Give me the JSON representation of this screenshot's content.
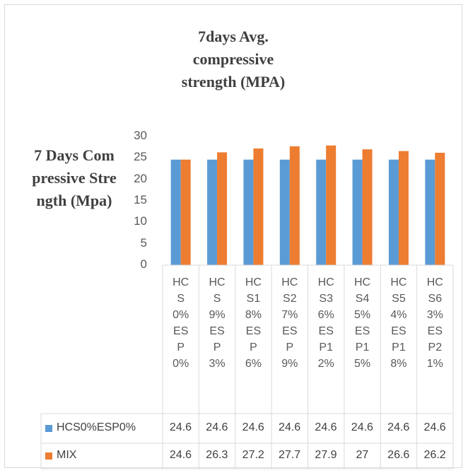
{
  "chart_data": {
    "type": "bar",
    "title": "7days Avg. compressive strength (MPA)",
    "y_label": "7 Days Compressive Strength (Mpa)",
    "categories": [
      "HCS0%ESP0%",
      "HCS9%ESP3%",
      "HCS18%ESP6%",
      "HCS27%ESP9%",
      "HCS36%ESP12%",
      "HCS45%ESP15%",
      "HCS54%ESP18%",
      "HCS63%ESP21%"
    ],
    "series": [
      {
        "name": "HCS0%ESP0%",
        "color": "#5b9bd5",
        "values": [
          24.6,
          24.6,
          24.6,
          24.6,
          24.6,
          24.6,
          24.6,
          24.6
        ]
      },
      {
        "name": "MIX",
        "color": "#ed7d31",
        "values": [
          24.6,
          26.3,
          27.2,
          27.7,
          27.9,
          27,
          26.6,
          26.2
        ]
      }
    ],
    "ylim": [
      0,
      30
    ],
    "yticks": [
      0,
      5,
      10,
      15,
      20,
      25,
      30
    ],
    "grid": false
  }
}
